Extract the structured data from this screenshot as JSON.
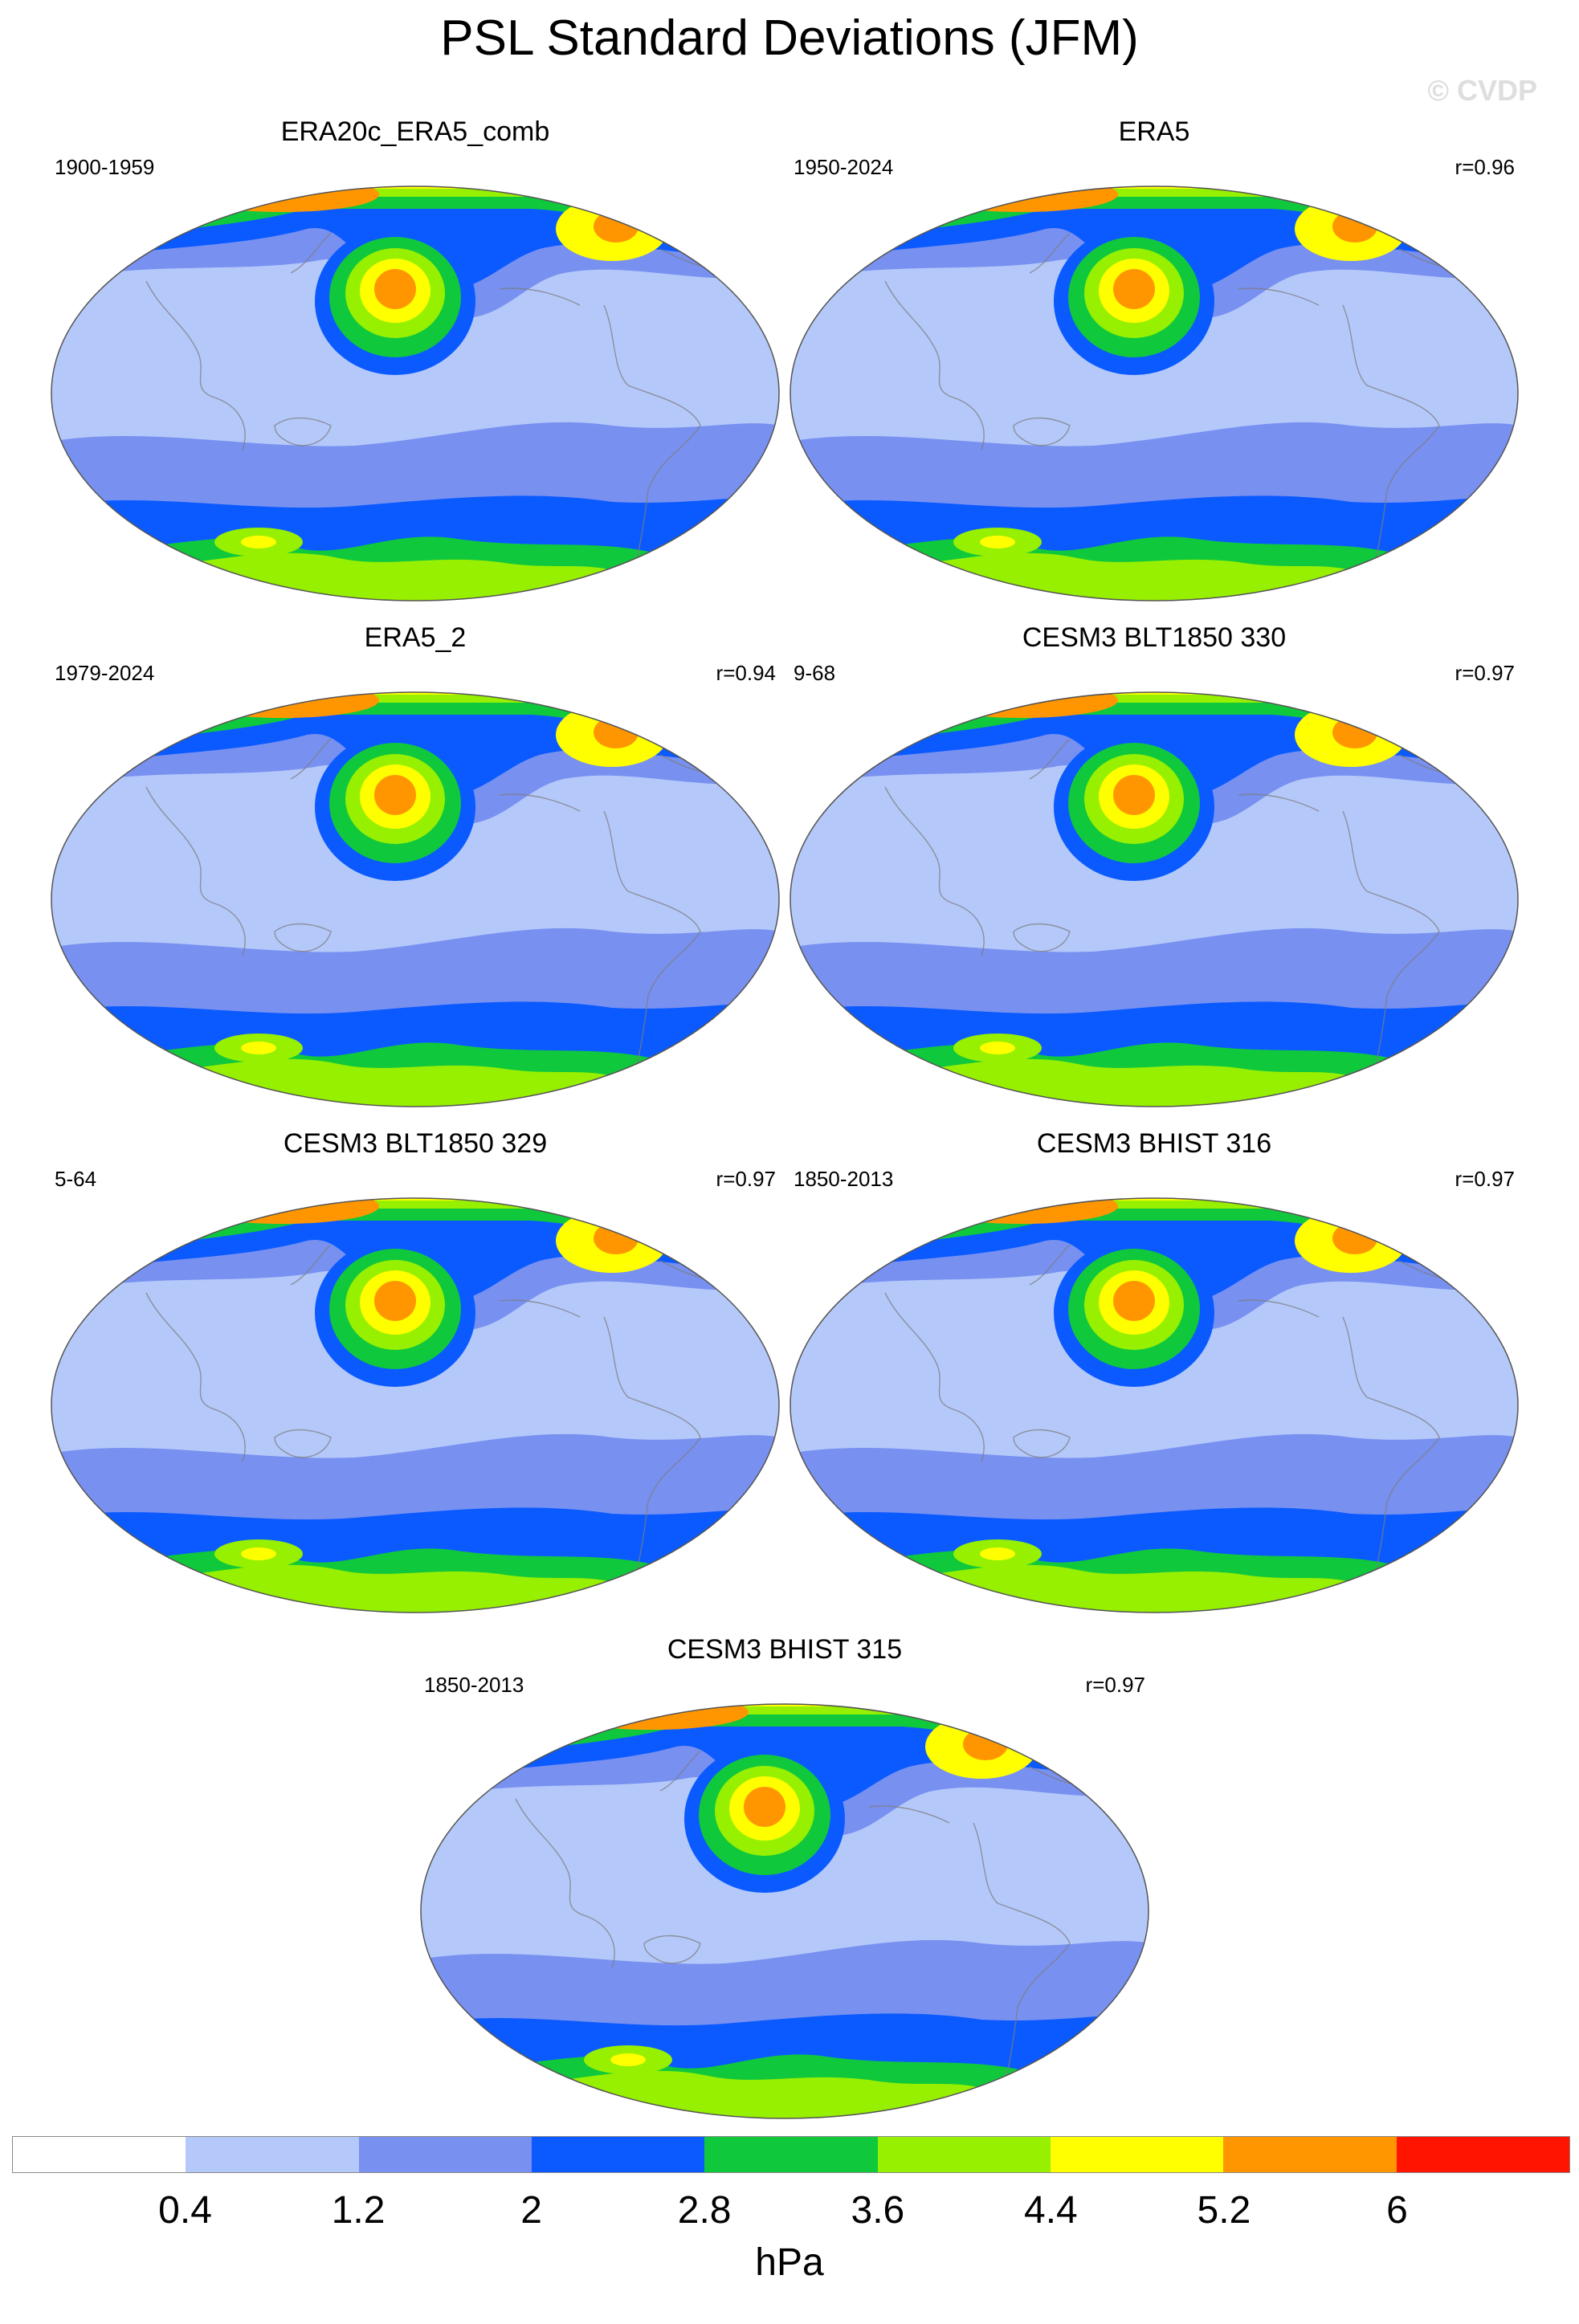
{
  "figure": {
    "title": "PSL Standard Deviations (JFM)",
    "watermark": "© CVDP"
  },
  "panels": [
    {
      "title": "ERA20c_ERA5_comb",
      "years": "1900-1959",
      "corr": ""
    },
    {
      "title": "ERA5",
      "years": "1950-2024",
      "corr": "r=0.96"
    },
    {
      "title": "ERA5_2",
      "years": "1979-2024",
      "corr": "r=0.94"
    },
    {
      "title": "CESM3 BLT1850 330",
      "years": "9-68",
      "corr": "r=0.97"
    },
    {
      "title": "CESM3 BLT1850 329",
      "years": "5-64",
      "corr": "r=0.97"
    },
    {
      "title": "CESM3 BHIST 316",
      "years": "1850-2013",
      "corr": "r=0.97"
    },
    {
      "title": "CESM3 BHIST 315",
      "years": "1850-2013",
      "corr": "r=0.97"
    }
  ],
  "colorbar": {
    "units": "hPa",
    "levels": [
      "0.4",
      "1.2",
      "2",
      "2.8",
      "3.6",
      "4.4",
      "5.2",
      "6"
    ],
    "colors": [
      "#ffffff",
      "#b4c8fa",
      "#7890f0",
      "#0a5aff",
      "#10c83c",
      "#96f000",
      "#ffff00",
      "#ff9600",
      "#ff1400"
    ]
  }
}
